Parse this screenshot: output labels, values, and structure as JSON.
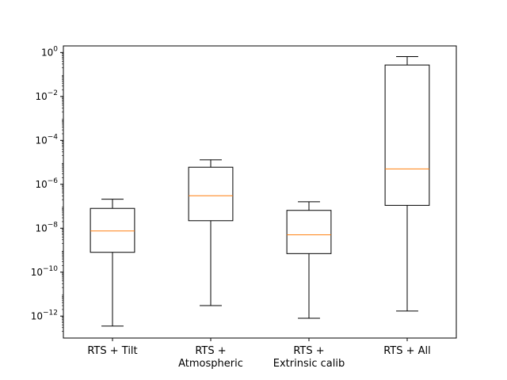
{
  "chart_data": {
    "type": "box",
    "title": "",
    "xlabel": "",
    "ylabel": "",
    "yscale": "log",
    "ylim": [
      1e-13,
      2.0
    ],
    "grid": false,
    "yticks": [
      {
        "value": 1,
        "base": "10",
        "exp": "0"
      },
      {
        "value": 0.01,
        "base": "10",
        "exp": "−2"
      },
      {
        "value": 0.0001,
        "base": "10",
        "exp": "−4"
      },
      {
        "value": 1e-06,
        "base": "10",
        "exp": "−6"
      },
      {
        "value": 1e-08,
        "base": "10",
        "exp": "−8"
      },
      {
        "value": 1e-10,
        "base": "10",
        "exp": "−10"
      },
      {
        "value": 1e-12,
        "base": "10",
        "exp": "−12"
      }
    ],
    "categories": [
      [
        "RTS + Tilt"
      ],
      [
        "RTS +",
        "Atmospheric"
      ],
      [
        "RTS +",
        "Extrinsic calib"
      ],
      [
        "RTS + All"
      ]
    ],
    "boxes": [
      {
        "whisker_low": 3.5e-13,
        "q1": 8e-10,
        "median": 7.5e-09,
        "q3": 8e-08,
        "whisker_high": 2.1e-07
      },
      {
        "whisker_low": 3e-12,
        "q1": 2.2e-08,
        "median": 3e-07,
        "q3": 6e-06,
        "whisker_high": 1.3e-05
      },
      {
        "whisker_low": 8e-13,
        "q1": 7e-10,
        "median": 5e-09,
        "q3": 6.5e-08,
        "whisker_high": 1.6e-07
      },
      {
        "whisker_low": 1.7e-12,
        "q1": 1.1e-07,
        "median": 5e-06,
        "q3": 0.27,
        "whisker_high": 0.65
      }
    ],
    "colors": {
      "box": "#000000",
      "median": "#ff7f0e"
    }
  }
}
